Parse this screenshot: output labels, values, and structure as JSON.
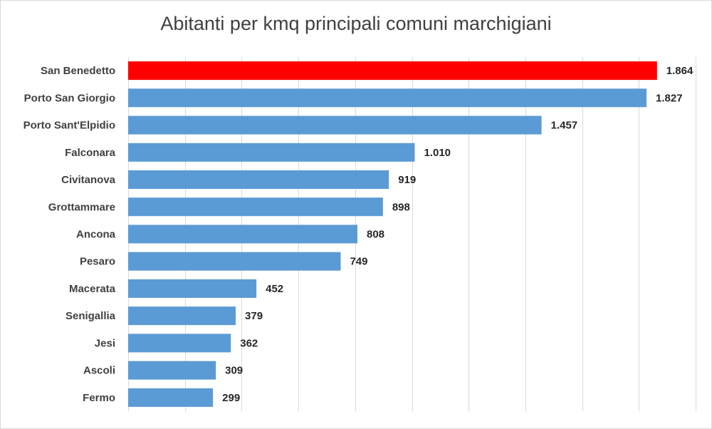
{
  "chart_data": {
    "type": "bar",
    "orientation": "horizontal",
    "title": "Abitanti per kmq principali comuni marchigiani",
    "categories": [
      "San Benedetto",
      "Porto San Giorgio",
      "Porto Sant'Elpidio",
      "Falconara",
      "Civitanova",
      "Grottammare",
      "Ancona",
      "Pesaro",
      "Macerata",
      "Senigallia",
      "Jesi",
      "Ascoli",
      "Fermo"
    ],
    "values": [
      1864,
      1827,
      1457,
      1010,
      919,
      898,
      808,
      749,
      452,
      379,
      362,
      309,
      299
    ],
    "value_labels": [
      "1.864",
      "1.827",
      "1.457",
      "1.010",
      "919",
      "898",
      "808",
      "749",
      "452",
      "379",
      "362",
      "309",
      "299"
    ],
    "highlight_index": 0,
    "colors": {
      "bar": "#5b9bd5",
      "highlight": "#ff0000",
      "grid": "#d9d9d9",
      "text": "#404040"
    },
    "xlim": [
      0,
      2000
    ],
    "grid": true,
    "legend": "none",
    "xlabel": "",
    "ylabel": ""
  }
}
